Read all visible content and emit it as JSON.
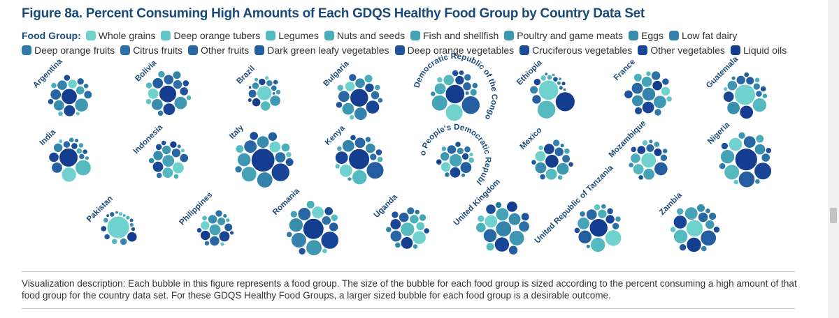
{
  "title": "Figure 8a. Percent Consuming High Amounts of Each GDQS Healthy Food Group by Country Data Set",
  "legend_label": "Food Group:",
  "description": "Visualization description: Each bubble in this figure represents a food group. The size of the bubble for each food group is sized according to the percent consuming a high amount of that food group for the country data set. For these GDQS Healthy Food Groups, a larger sized bubble for each food group is a desirable outcome.",
  "chart_data": {
    "type": "bubble-cluster",
    "title": "Figure 8a. Percent Consuming High Amounts of Each GDQS Healthy Food Group by Country Data Set",
    "food_groups": [
      {
        "name": "Whole grains",
        "color": "#6fd2cf"
      },
      {
        "name": "Deep orange tubers",
        "color": "#62c6c8"
      },
      {
        "name": "Legumes",
        "color": "#55bac0"
      },
      {
        "name": "Nuts and seeds",
        "color": "#4aaebb"
      },
      {
        "name": "Fish and shellfish",
        "color": "#44a3b6"
      },
      {
        "name": "Poultry and game meats",
        "color": "#3e98b2"
      },
      {
        "name": "Eggs",
        "color": "#388daf"
      },
      {
        "name": "Low fat dairy",
        "color": "#3483ad"
      },
      {
        "name": "Deep orange fruits",
        "color": "#2f79aa"
      },
      {
        "name": "Citrus fruits",
        "color": "#2b70a7"
      },
      {
        "name": "Other fruits",
        "color": "#2867a4"
      },
      {
        "name": "Dark green leafy vegetables",
        "color": "#245ea1"
      },
      {
        "name": "Deep orange vegetables",
        "color": "#20559d"
      },
      {
        "name": "Cruciferous vegetables",
        "color": "#1c4d99"
      },
      {
        "name": "Other vegetables",
        "color": "#184595"
      },
      {
        "name": "Liquid oils",
        "color": "#143d90"
      }
    ],
    "countries": [
      {
        "name": "Argentina",
        "values": [
          10,
          2,
          3,
          4,
          9,
          22,
          14,
          12,
          3,
          8,
          14,
          6,
          4,
          5,
          16,
          30
        ]
      },
      {
        "name": "Bolivia",
        "values": [
          14,
          4,
          5,
          3,
          6,
          20,
          16,
          8,
          4,
          10,
          12,
          14,
          9,
          5,
          18,
          36
        ]
      },
      {
        "name": "Brazil",
        "values": [
          26,
          2,
          12,
          2,
          3,
          14,
          6,
          5,
          1,
          4,
          8,
          3,
          1,
          2,
          6,
          9
        ]
      },
      {
        "name": "Bulgaria",
        "values": [
          12,
          3,
          5,
          8,
          4,
          18,
          12,
          20,
          3,
          9,
          16,
          7,
          5,
          10,
          22,
          40
        ]
      },
      {
        "name": "Democratic Republic of the Congo",
        "values": [
          36,
          4,
          14,
          16,
          30,
          6,
          3,
          2,
          4,
          6,
          9,
          40,
          5,
          3,
          10,
          44
        ]
      },
      {
        "name": "Ethiopia",
        "values": [
          48,
          4,
          40,
          3,
          1,
          1,
          2,
          8,
          1,
          1,
          2,
          10,
          3,
          2,
          6,
          46
        ]
      },
      {
        "name": "France",
        "values": [
          10,
          4,
          3,
          8,
          14,
          20,
          16,
          22,
          6,
          10,
          16,
          6,
          9,
          7,
          18,
          12
        ]
      },
      {
        "name": "Guatemala",
        "values": [
          52,
          2,
          24,
          3,
          3,
          12,
          20,
          6,
          2,
          5,
          10,
          8,
          3,
          4,
          14,
          22
        ]
      },
      {
        "name": "India",
        "values": [
          26,
          2,
          30,
          4,
          3,
          2,
          3,
          10,
          2,
          4,
          6,
          14,
          3,
          5,
          12,
          42
        ]
      },
      {
        "name": "Indonesia",
        "values": [
          16,
          2,
          14,
          3,
          18,
          10,
          12,
          4,
          2,
          4,
          10,
          9,
          3,
          5,
          14,
          6
        ]
      },
      {
        "name": "Italy",
        "values": [
          16,
          4,
          8,
          9,
          28,
          22,
          18,
          30,
          6,
          14,
          20,
          10,
          8,
          9,
          40,
          66
        ]
      },
      {
        "name": "Kenya",
        "values": [
          20,
          3,
          26,
          4,
          3,
          2,
          12,
          18,
          4,
          6,
          14,
          36,
          5,
          4,
          20,
          52
        ]
      },
      {
        "name": "Lao People's Democratic Republic",
        "values": [
          12,
          2,
          4,
          3,
          20,
          10,
          6,
          2,
          3,
          5,
          10,
          16,
          4,
          6,
          14,
          4
        ]
      },
      {
        "name": "Mexico",
        "values": [
          14,
          3,
          16,
          3,
          4,
          18,
          16,
          6,
          2,
          8,
          10,
          4,
          3,
          3,
          14,
          22
        ]
      },
      {
        "name": "Mozambique",
        "values": [
          28,
          4,
          14,
          12,
          16,
          4,
          3,
          2,
          3,
          6,
          8,
          22,
          4,
          3,
          9,
          8
        ]
      },
      {
        "name": "Nigeria",
        "values": [
          22,
          3,
          28,
          8,
          24,
          6,
          14,
          3,
          5,
          9,
          18,
          32,
          6,
          4,
          36,
          60
        ]
      },
      {
        "name": "Pakistan",
        "values": [
          60,
          2,
          4,
          2,
          1,
          3,
          2,
          6,
          1,
          2,
          3,
          4,
          1,
          2,
          4,
          12
        ]
      },
      {
        "name": "Philippines",
        "values": [
          10,
          2,
          3,
          2,
          16,
          8,
          10,
          2,
          3,
          6,
          12,
          8,
          2,
          3,
          14,
          12
        ]
      },
      {
        "name": "Romania",
        "values": [
          18,
          3,
          6,
          8,
          6,
          30,
          24,
          28,
          4,
          10,
          20,
          10,
          6,
          9,
          38,
          52
        ]
      },
      {
        "name": "Uganda",
        "values": [
          22,
          9,
          24,
          10,
          6,
          3,
          4,
          4,
          3,
          7,
          16,
          12,
          6,
          4,
          14,
          18
        ]
      },
      {
        "name": "United Kingdom",
        "values": [
          20,
          6,
          8,
          12,
          20,
          28,
          18,
          30,
          5,
          14,
          22,
          10,
          8,
          12,
          26,
          14
        ]
      },
      {
        "name": "United Republic of Tanzania",
        "values": [
          32,
          5,
          26,
          10,
          18,
          4,
          3,
          2,
          4,
          6,
          14,
          22,
          5,
          4,
          10,
          40
        ]
      },
      {
        "name": "Zambia",
        "values": [
          34,
          4,
          24,
          6,
          20,
          10,
          8,
          4,
          3,
          7,
          12,
          30,
          6,
          5,
          22,
          26
        ]
      }
    ]
  }
}
